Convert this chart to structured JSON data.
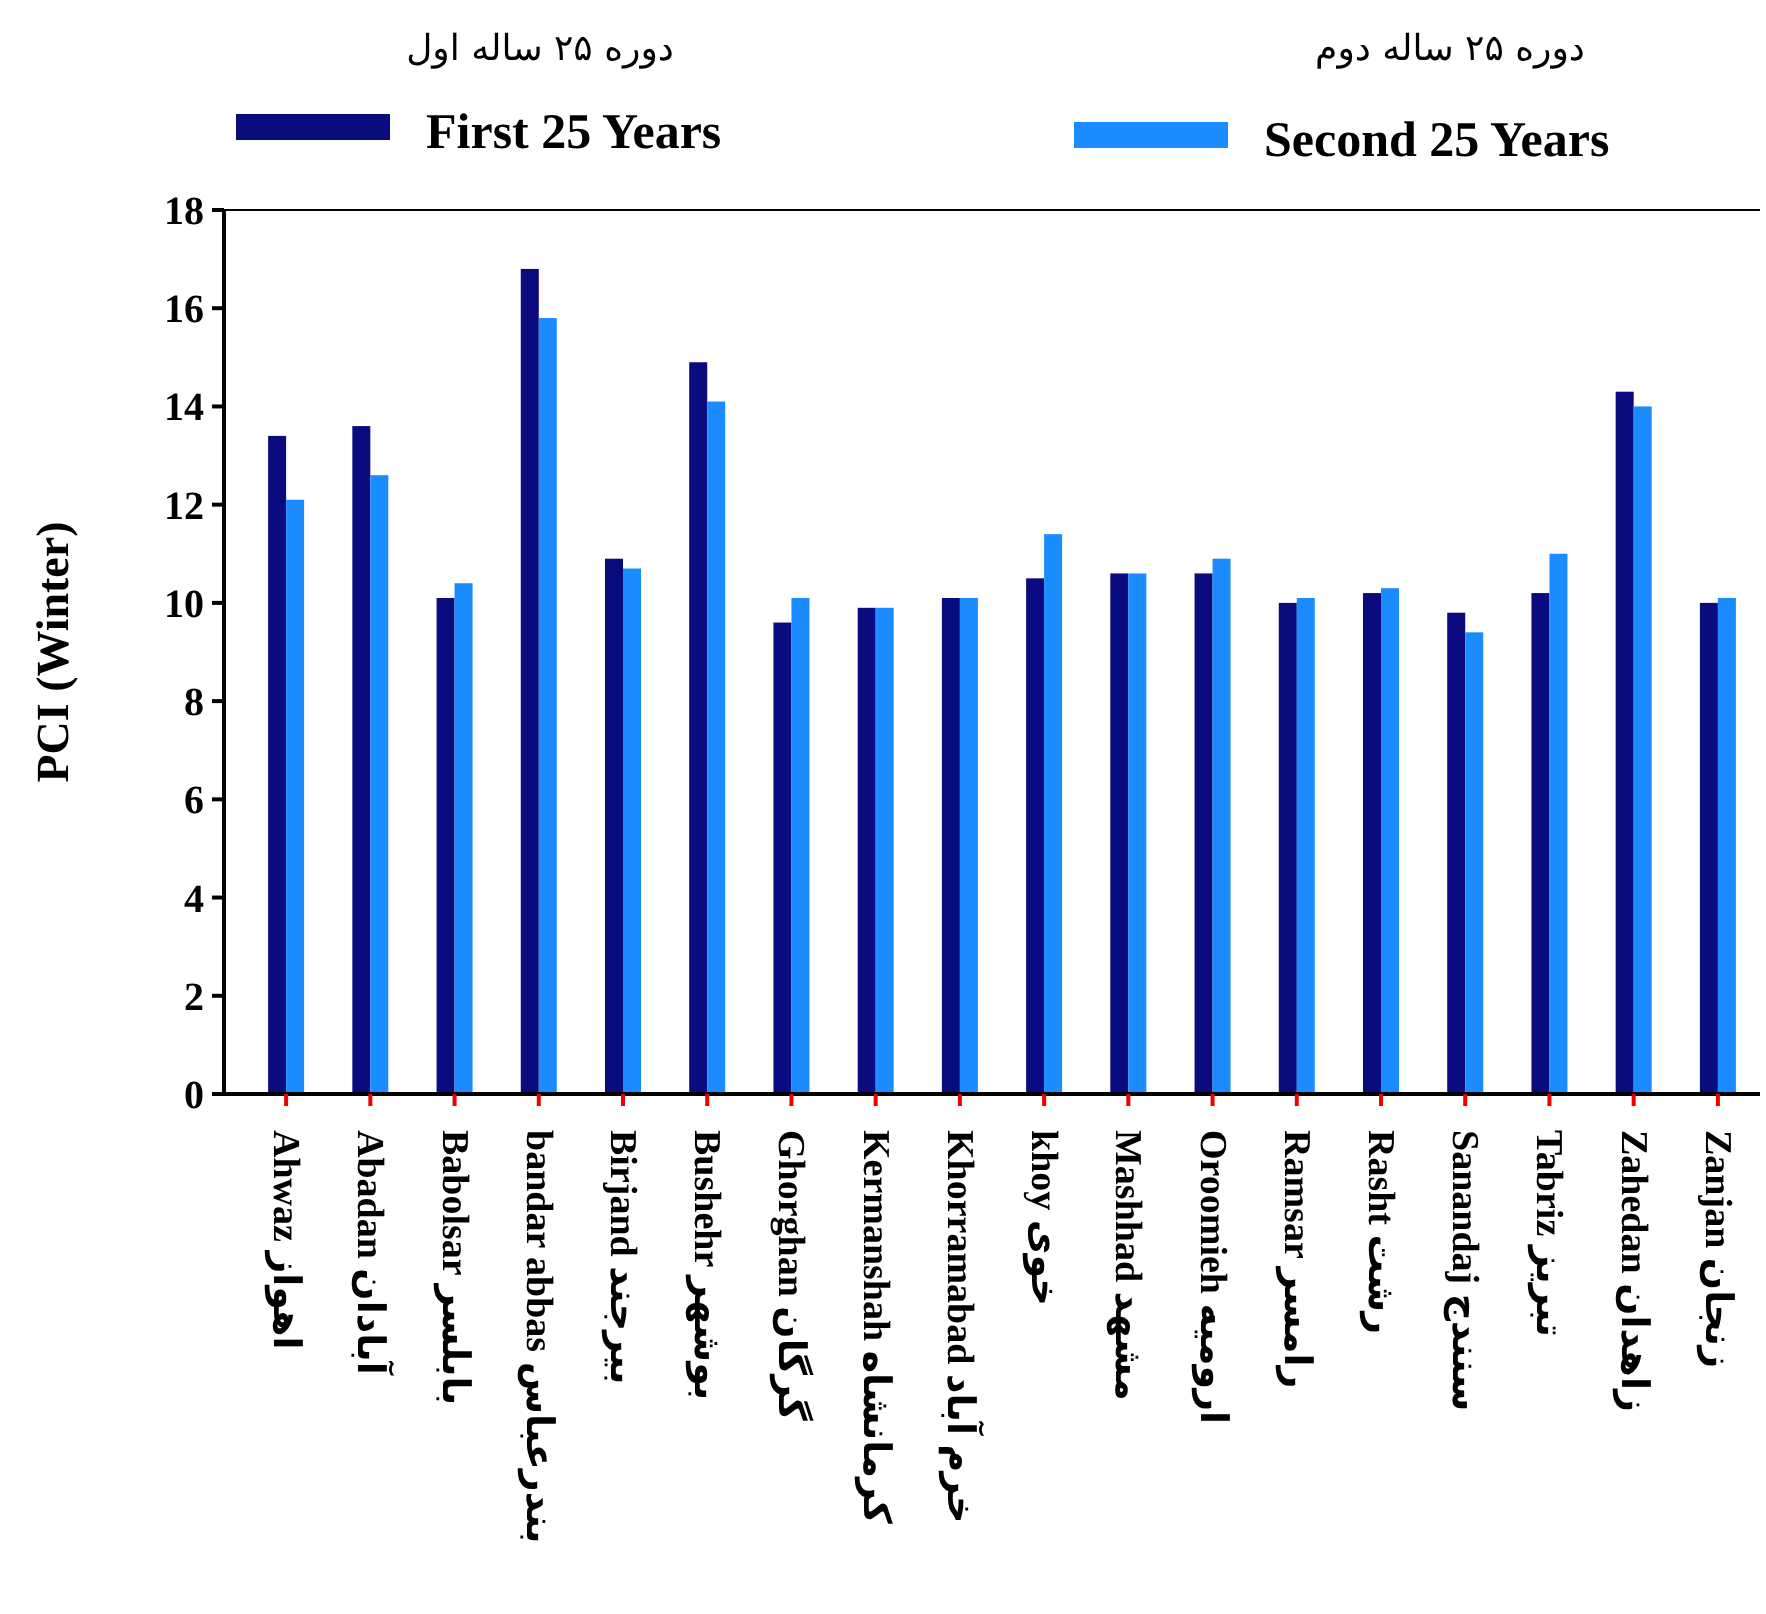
{
  "chart_data": {
    "type": "bar",
    "ylabel": "PCI (Winter)",
    "categories": [
      "Ahwaz اهواز",
      "Abadan آبادان",
      "Babolsar بابلسر",
      "bandar abbas بندرعباس",
      "Birjand بیرجند",
      "Bushehr بوشهر",
      "Ghorghan گرگان",
      "Kermanshah کرمانشاه",
      "Khorramabad خرم آباد",
      "khoy خوی",
      "Mashhad مشهد",
      "Oroomieh ارومیه",
      "Ramsar رامسر",
      "Rasht رشت",
      "Sanandaj سنندج",
      "Tabriz تبریز",
      "Zahedan زاهدان",
      "Zanjan زنجان"
    ],
    "series": [
      {
        "name": "First 25 Years",
        "color": "#0b0b80",
        "values": [
          13.4,
          13.6,
          10.1,
          16.8,
          10.9,
          14.9,
          9.6,
          9.9,
          10.1,
          10.5,
          10.6,
          10.6,
          10.0,
          10.2,
          9.8,
          10.2,
          14.3,
          10.0
        ]
      },
      {
        "name": "Second 25 Years",
        "color": "#1a8cff",
        "values": [
          12.1,
          12.6,
          10.4,
          15.8,
          10.7,
          14.1,
          10.1,
          9.9,
          10.1,
          11.4,
          10.6,
          10.9,
          10.1,
          10.3,
          9.4,
          11.0,
          14.0,
          10.1
        ]
      }
    ],
    "annotations": [
      "دوره ۲۵ ساله اول",
      "دوره ۲۵ ساله دوم"
    ],
    "ylim": [
      0,
      18
    ],
    "yticks": [
      0,
      2,
      4,
      6,
      8,
      10,
      12,
      14,
      16,
      18
    ],
    "legend": "top",
    "grid": false
  }
}
